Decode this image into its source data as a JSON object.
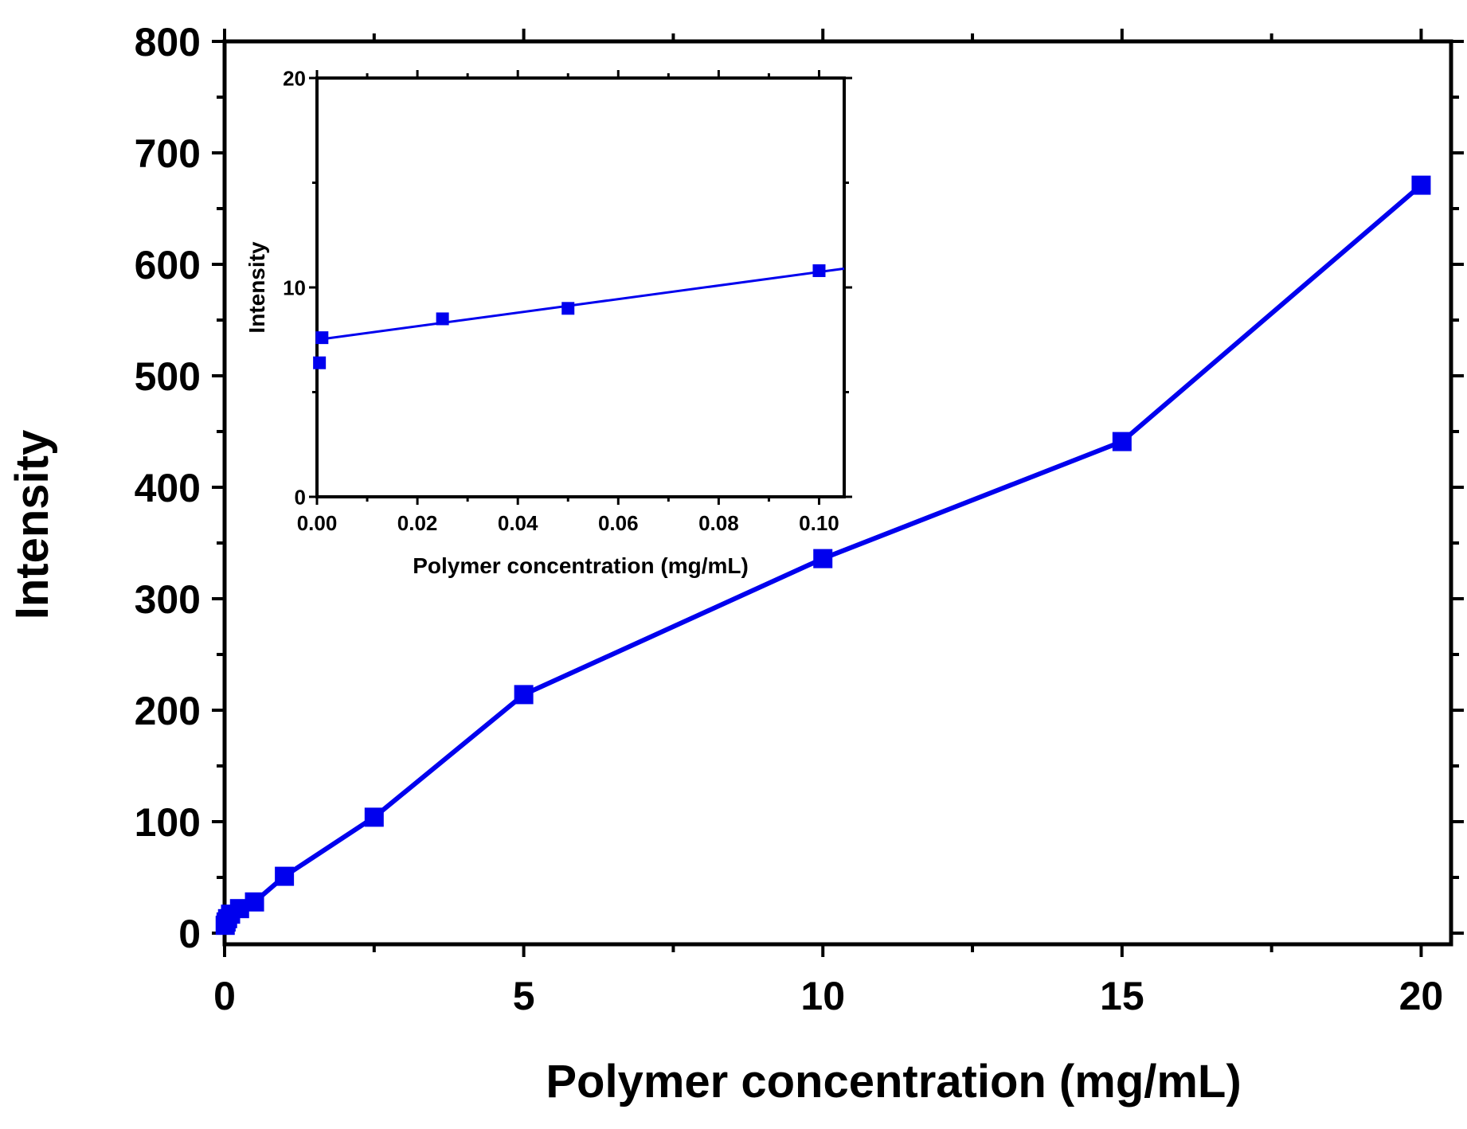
{
  "chart_data": [
    {
      "type": "line",
      "xlabel": "Polymer concentration (mg/mL)",
      "ylabel": "Intensity",
      "xlim": [
        0,
        20.5
      ],
      "ylim": [
        -10,
        800
      ],
      "xticks": [
        0,
        5,
        10,
        15,
        20
      ],
      "xtick_labels": [
        "0",
        "5",
        "10",
        "15",
        "20"
      ],
      "yticks": [
        0,
        100,
        200,
        300,
        400,
        500,
        600,
        700,
        800
      ],
      "ytick_labels": [
        "0",
        "100",
        "200",
        "300",
        "400",
        "500",
        "600",
        "700",
        "800"
      ],
      "grid": false,
      "marker": "square",
      "color": "#0000ee",
      "series": [
        {
          "x": [
            0.01,
            0.025,
            0.05,
            0.1,
            0.25,
            0.5,
            1,
            2.5,
            5,
            10,
            15,
            20
          ],
          "y": [
            7,
            10,
            13,
            17,
            22,
            28,
            51,
            104,
            214,
            336,
            441,
            671
          ]
        }
      ]
    },
    {
      "type": "line",
      "inset": true,
      "xlabel": "Polymer concentration (mg/mL)",
      "ylabel": "Intensity",
      "xlim": [
        0,
        0.105
      ],
      "ylim": [
        0,
        20
      ],
      "xticks": [
        0,
        0.02,
        0.04,
        0.06,
        0.08,
        0.1
      ],
      "xtick_labels": [
        "0.00",
        "0.02",
        "0.04",
        "0.06",
        "0.08",
        "0.10"
      ],
      "yticks": [
        0,
        10,
        20
      ],
      "ytick_labels": [
        "0",
        "10",
        "20"
      ],
      "grid": false,
      "marker": "square",
      "color": "#0000ee",
      "series": [
        {
          "x": [
            0.0005,
            0.001,
            0.025,
            0.05,
            0.1
          ],
          "y": [
            6.4,
            7.6,
            8.5,
            9.0,
            10.8
          ]
        }
      ],
      "fit_line": {
        "x": [
          0,
          0.105
        ],
        "y": [
          7.5,
          10.9
        ]
      }
    }
  ]
}
